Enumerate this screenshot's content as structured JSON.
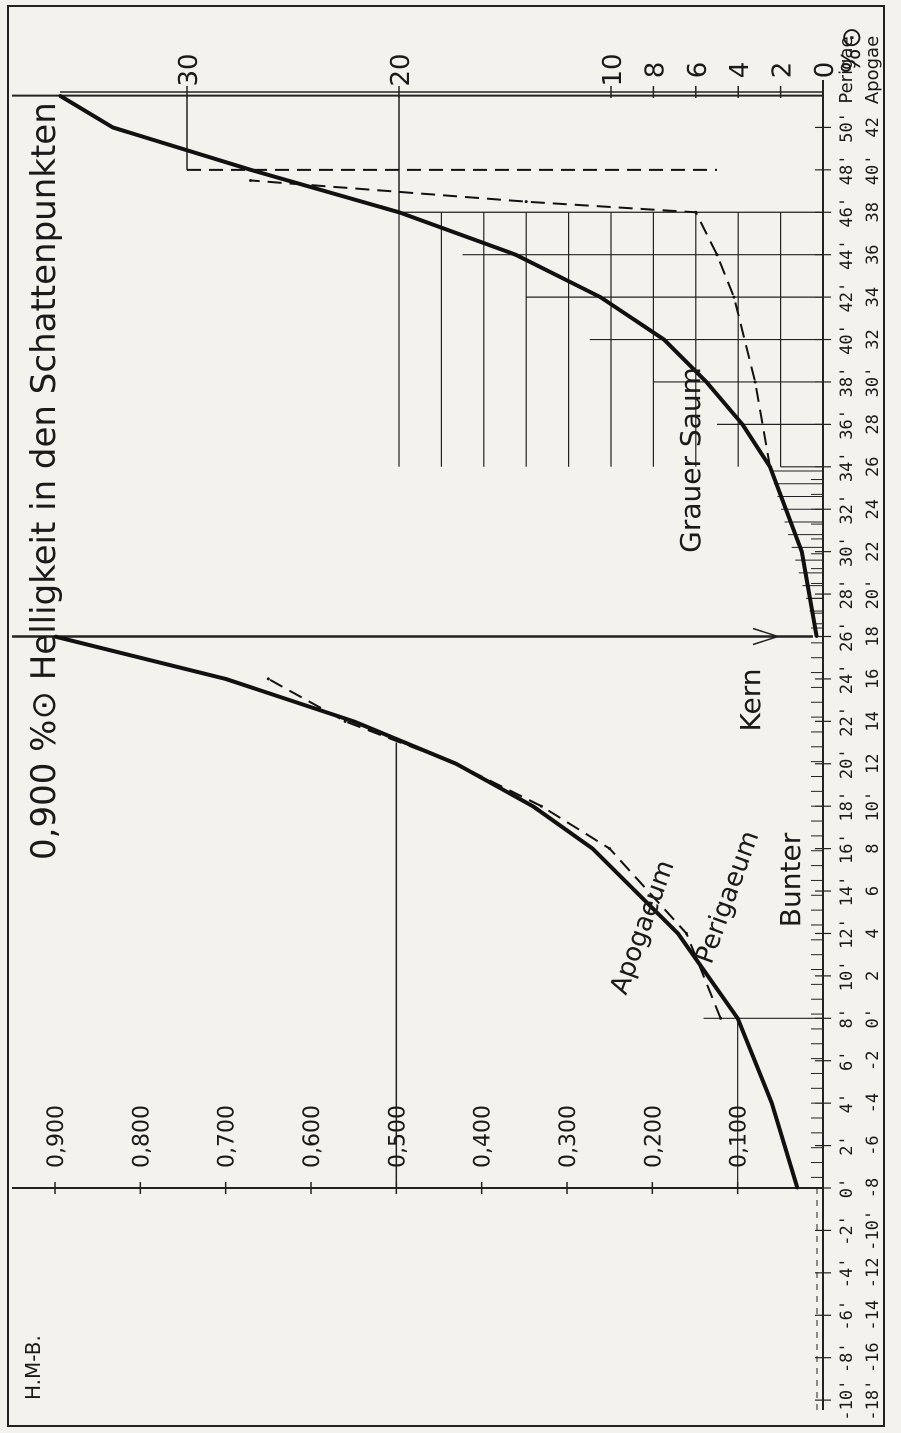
{
  "chart_data": {
    "type": "line",
    "title": "Helligkeit in den Schattenpunkten",
    "signature": "H.M-B.",
    "orientation": "rotated 90° counter-clockwise",
    "x_axis_label_perigee": "Perigae",
    "x_axis_label_apogee": "Apogae",
    "x_ticks_perigee": [
      "-10'",
      "-8'",
      "-6'",
      "-4'",
      "-2'",
      "0'",
      "2'",
      "4'",
      "6'",
      "8'",
      "10'",
      "12'",
      "14'",
      "16'",
      "18'",
      "20'",
      "22'",
      "24'",
      "26'",
      "28'",
      "30'",
      "32'",
      "34'",
      "36'",
      "38'",
      "40'",
      "42'",
      "44'",
      "46'",
      "48'",
      "50'"
    ],
    "x_ticks_apogee": [
      "-18'",
      "-16",
      "-14",
      "-12",
      "-10'",
      "-8",
      "-6",
      "-4",
      "-2",
      "0'",
      "2",
      "4",
      "6",
      "8",
      "10'",
      "12",
      "14",
      "16",
      "18",
      "20'",
      "22",
      "24",
      "26",
      "28",
      "30'",
      "32",
      "34",
      "36",
      "38",
      "40'",
      "42"
    ],
    "left_scale_unit": "%⊙",
    "left_scale_ticks": [
      "0,900",
      "0,800",
      "0,700",
      "0,600",
      "0,500",
      "0,400",
      "0,300",
      "0,200",
      "0,100"
    ],
    "right_scale_unit": "%⊙",
    "right_scale_ticks": [
      "30",
      "20",
      "10",
      "8",
      "6",
      "4",
      "2",
      "0"
    ],
    "regions": [
      "Bunter",
      "Kern",
      "Grauer Saum"
    ],
    "series": [
      {
        "name": "Perigaeum",
        "style": "solid",
        "scale": "left",
        "x": [
          0,
          4,
          8,
          12,
          16,
          18,
          20,
          22,
          24,
          26
        ],
        "y": [
          0.03,
          0.06,
          0.1,
          0.17,
          0.27,
          0.34,
          0.43,
          0.55,
          0.7,
          0.9
        ]
      },
      {
        "name": "Apogaeum",
        "style": "dashed",
        "scale": "left",
        "x": [
          8,
          12,
          16,
          18,
          20,
          22,
          24
        ],
        "y": [
          0.12,
          0.16,
          0.25,
          0.33,
          0.43,
          0.56,
          0.65
        ]
      },
      {
        "name": "Kern / Grauer Saum",
        "style": "solid",
        "scale": "right",
        "x": [
          26,
          30,
          34,
          36,
          38,
          40,
          42,
          44,
          46,
          48,
          50,
          51.5
        ],
        "y": [
          0.3,
          1,
          2.5,
          3.8,
          5.5,
          7.5,
          10.5,
          14.5,
          20,
          27,
          33.5,
          36
        ]
      },
      {
        "name": "Apogaeum",
        "style": "dashed",
        "scale": "right",
        "x": [
          34,
          38,
          42,
          44,
          46,
          46.5,
          47.5
        ],
        "y": [
          2.5,
          3.2,
          4.2,
          5,
          6,
          14,
          27
        ]
      }
    ]
  }
}
